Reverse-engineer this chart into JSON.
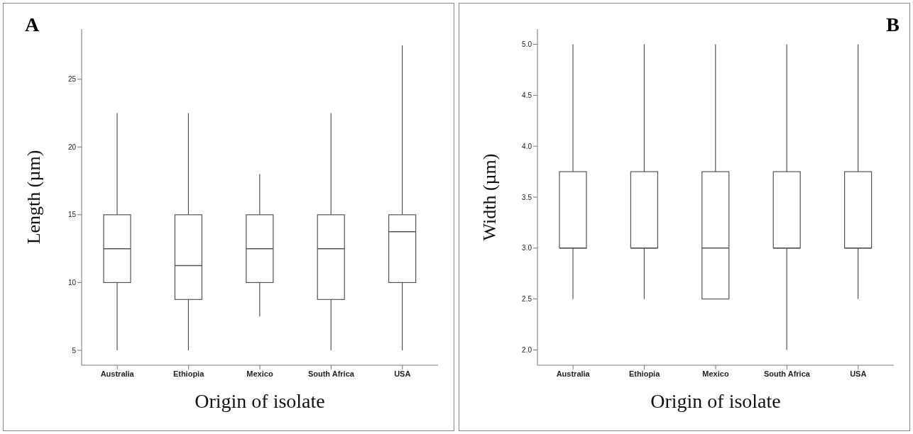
{
  "chart_data": [
    {
      "type": "box",
      "annotations": [
        "A"
      ],
      "xlabel": "Origin of isolate",
      "ylabel": "Length (µm)",
      "color": "#555555",
      "categories": [
        "Australia",
        "Ethiopia",
        "Mexico",
        "South Africa",
        "USA"
      ],
      "boxes": [
        {
          "low": 5,
          "q1": 10,
          "median": 12.5,
          "q3": 15,
          "high": 22.5
        },
        {
          "low": 5,
          "q1": 8.75,
          "median": 11.25,
          "q3": 15,
          "high": 22.5
        },
        {
          "low": 7.5,
          "q1": 10,
          "median": 12.5,
          "q3": 15,
          "high": 18
        },
        {
          "low": 5,
          "q1": 8.75,
          "median": 12.5,
          "q3": 15,
          "high": 22.5
        },
        {
          "low": 5,
          "q1": 10,
          "median": 13.75,
          "q3": 15,
          "high": 27.5
        }
      ],
      "ylim": [
        3.9,
        28.7
      ],
      "yticks": [
        5,
        10,
        15,
        20,
        25
      ],
      "grid": false,
      "legend": false
    },
    {
      "type": "box",
      "annotations": [
        "B"
      ],
      "xlabel": "Origin of isolate",
      "ylabel": "Width (µm)",
      "color": "#555555",
      "categories": [
        "Australia",
        "Ethiopia",
        "Mexico",
        "South Africa",
        "USA"
      ],
      "boxes": [
        {
          "low": 2.5,
          "q1": 3,
          "median": 3,
          "q3": 3.75,
          "high": 5
        },
        {
          "low": 2.5,
          "q1": 3,
          "median": 3,
          "q3": 3.75,
          "high": 5
        },
        {
          "low": 2.5,
          "q1": 2.5,
          "median": 3,
          "q3": 3.75,
          "high": 5
        },
        {
          "low": 2,
          "q1": 3,
          "median": 3,
          "q3": 3.75,
          "high": 5
        },
        {
          "low": 2.5,
          "q1": 3,
          "median": 3,
          "q3": 3.75,
          "high": 5
        }
      ],
      "ylim": [
        1.85,
        5.15
      ],
      "yticks": [
        {
          "value": 2,
          "label": "2.0"
        },
        {
          "value": 2.5,
          "label": "2.5"
        },
        {
          "value": 3,
          "label": "3.0"
        },
        {
          "value": 3.5,
          "label": "3.5"
        },
        {
          "value": 4,
          "label": "4.0"
        },
        {
          "value": 4.5,
          "label": "4.5"
        },
        {
          "value": 5,
          "label": "5.0"
        }
      ],
      "grid": false,
      "legend": false
    }
  ]
}
